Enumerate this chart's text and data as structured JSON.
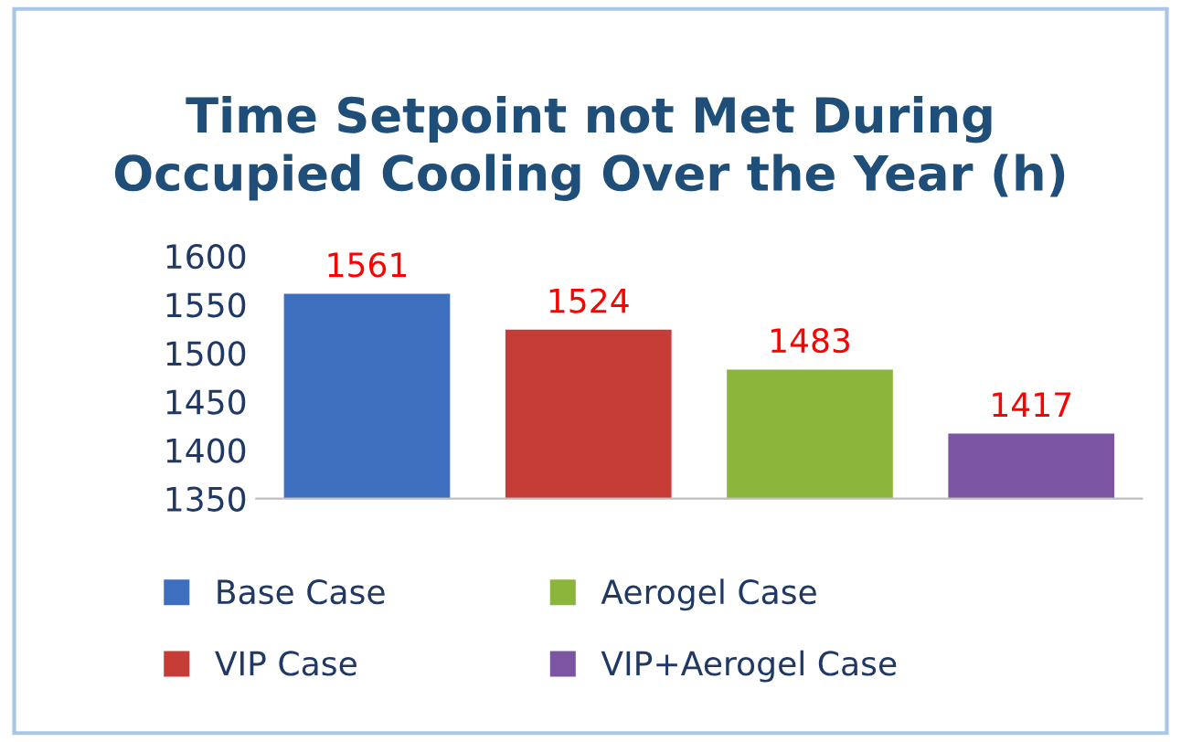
{
  "chart_data": {
    "type": "bar",
    "title": "Time Setpoint not Met During\nOccupied Cooling Over the Year (h)",
    "categories": [
      null,
      null,
      null,
      null
    ],
    "series": [
      {
        "name": "Base Case",
        "color": "#3d6fbe",
        "values": [
          1561,
          null,
          null,
          null
        ]
      },
      {
        "name": "VIP Case",
        "color": "#c63c36",
        "values": [
          null,
          1524,
          null,
          null
        ]
      },
      {
        "name": "Aerogel Case",
        "color": "#8cb53c",
        "values": [
          null,
          null,
          1483,
          null
        ]
      },
      {
        "name": "VIP+Aerogel Case",
        "color": "#7b55a1",
        "values": [
          null,
          null,
          null,
          1417
        ]
      }
    ],
    "ylim": [
      1350,
      1600
    ],
    "yticks": [
      1350,
      1400,
      1450,
      1500,
      1550,
      1600
    ],
    "data_labels": true,
    "legend": "bottom",
    "grid": false
  }
}
